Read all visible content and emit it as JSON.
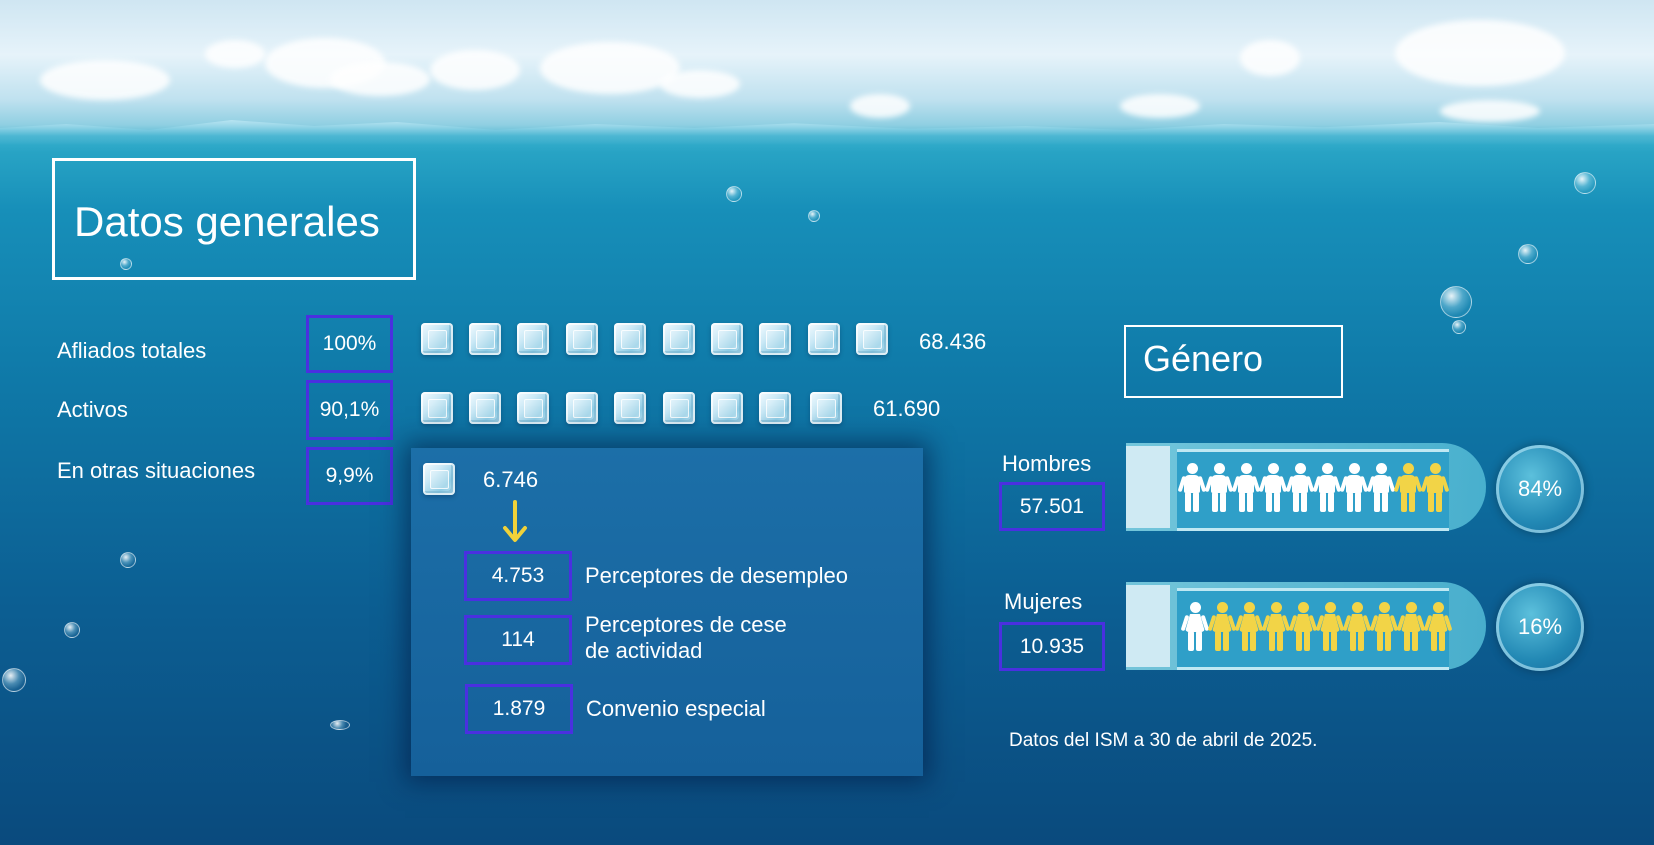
{
  "title": "Datos generales",
  "rows": [
    {
      "label": "Afliados totales",
      "percent": "100%",
      "cubes": 10,
      "value": "68.436"
    },
    {
      "label": "Activos",
      "percent": "90,1%",
      "cubes": 9,
      "value": "61.690"
    },
    {
      "label": "En otras situaciones",
      "percent": "9,9%",
      "cubes": 1,
      "value": "6.746"
    }
  ],
  "breakdown": [
    {
      "value": "4.753",
      "label": "Perceptores de desempleo"
    },
    {
      "value": "114",
      "label_line1": "Perceptores de cese",
      "label_line2": "de actividad"
    },
    {
      "value": "1.879",
      "label": "Convenio especial"
    }
  ],
  "genero": {
    "title": "Género",
    "hombres": {
      "label": "Hombres",
      "value": "57.501",
      "percent": "84%"
    },
    "mujeres": {
      "label": "Mujeres",
      "value": "10.935",
      "percent": "16%"
    }
  },
  "footnote": "Datos del ISM a 30 de abril de 2025.",
  "colors": {
    "highlight_box": "#4a30e0",
    "accent_yellow": "#f2d447",
    "arrow": "#f0d23a"
  }
}
